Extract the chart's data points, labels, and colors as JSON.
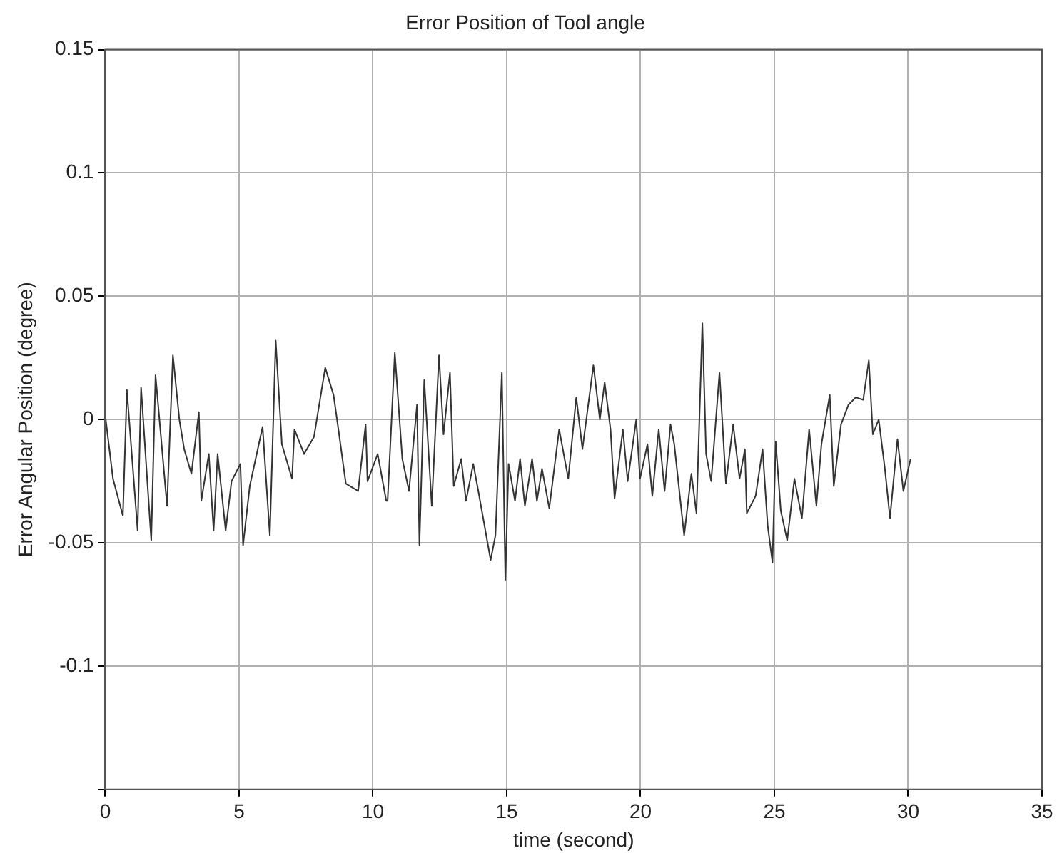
{
  "chart_data": {
    "type": "line",
    "title": "Error Position of Tool angle",
    "xlabel": "time (second)",
    "ylabel": "Error Angular Position (degree)",
    "xlim": [
      0,
      35
    ],
    "xticks": [
      0,
      5,
      10,
      15,
      20,
      25,
      30,
      35
    ],
    "ylim": [
      -0.15,
      0.15
    ],
    "yticks": [
      {
        "value": -0.15,
        "label": null
      },
      -0.1,
      -0.05,
      0,
      0.05,
      0.1,
      0.15
    ],
    "grid": true,
    "marker": "none",
    "line_style": "solid",
    "series": [
      {
        "color": "#333333",
        "x": [
          0.02,
          0.29,
          0.66,
          0.81,
          1.21,
          1.34,
          1.72,
          1.88,
          2.31,
          2.53,
          2.77,
          2.95,
          3.22,
          3.5,
          3.59,
          3.87,
          4.05,
          4.2,
          4.5,
          4.72,
          5.05,
          5.15,
          5.4,
          5.88,
          6.15,
          6.37,
          6.6,
          6.98,
          7.07,
          7.43,
          7.8,
          8.22,
          8.53,
          8.7,
          8.99,
          9.45,
          9.73,
          9.8,
          10.18,
          10.5,
          10.55,
          10.82,
          11.1,
          11.35,
          11.65,
          11.74,
          11.92,
          12.2,
          12.47,
          12.64,
          12.88,
          13.02,
          13.3,
          13.48,
          13.75,
          13.94,
          14.4,
          14.58,
          14.82,
          14.95,
          15.07,
          15.31,
          15.5,
          15.68,
          15.95,
          16.13,
          16.32,
          16.59,
          16.96,
          17.3,
          17.6,
          17.83,
          18.24,
          18.48,
          18.66,
          18.88,
          19.03,
          19.34,
          19.52,
          19.84,
          19.98,
          20.26,
          20.44,
          20.68,
          20.9,
          21.12,
          21.26,
          21.63,
          21.9,
          22.09,
          22.31,
          22.45,
          22.64,
          22.95,
          23.19,
          23.46,
          23.7,
          23.9,
          23.97,
          24.3,
          24.56,
          24.75,
          24.93,
          25.05,
          25.24,
          25.48,
          25.75,
          26.03,
          26.3,
          26.57,
          26.76,
          27.07,
          27.22,
          27.49,
          27.77,
          28.04,
          28.32,
          28.53,
          28.68,
          28.9,
          29.13,
          29.32,
          29.6,
          29.82,
          30.09
        ],
        "values": [
          0,
          -0.024,
          -0.039,
          0.012,
          -0.045,
          0.013,
          -0.049,
          0.018,
          -0.035,
          0.026,
          0,
          -0.012,
          -0.022,
          0.003,
          -0.033,
          -0.014,
          -0.045,
          -0.014,
          -0.045,
          -0.025,
          -0.018,
          -0.051,
          -0.027,
          -0.003,
          -0.047,
          0.032,
          -0.01,
          -0.024,
          -0.004,
          -0.014,
          -0.007,
          0.021,
          0.01,
          -0.003,
          -0.026,
          -0.029,
          -0.002,
          -0.025,
          -0.014,
          -0.033,
          -0.033,
          0.027,
          -0.016,
          -0.029,
          0.006,
          -0.051,
          0.016,
          -0.035,
          0.026,
          -0.006,
          0.019,
          -0.027,
          -0.016,
          -0.033,
          -0.018,
          -0.029,
          -0.057,
          -0.047,
          0.019,
          -0.065,
          -0.018,
          -0.033,
          -0.016,
          -0.035,
          -0.016,
          -0.033,
          -0.02,
          -0.036,
          -0.004,
          -0.024,
          0.009,
          -0.012,
          0.022,
          0,
          0.015,
          -0.004,
          -0.032,
          -0.004,
          -0.025,
          0,
          -0.024,
          -0.01,
          -0.031,
          -0.004,
          -0.029,
          -0.002,
          -0.01,
          -0.047,
          -0.022,
          -0.038,
          0.039,
          -0.014,
          -0.025,
          0.019,
          -0.026,
          -0.002,
          -0.024,
          -0.012,
          -0.038,
          -0.031,
          -0.012,
          -0.043,
          -0.058,
          -0.009,
          -0.037,
          -0.049,
          -0.024,
          -0.04,
          -0.004,
          -0.035,
          -0.01,
          0.01,
          -0.027,
          -0.002,
          0.006,
          0.009,
          0.008,
          0.024,
          -0.006,
          0,
          -0.02,
          -0.04,
          -0.008,
          -0.029,
          -0.016
        ]
      }
    ]
  }
}
